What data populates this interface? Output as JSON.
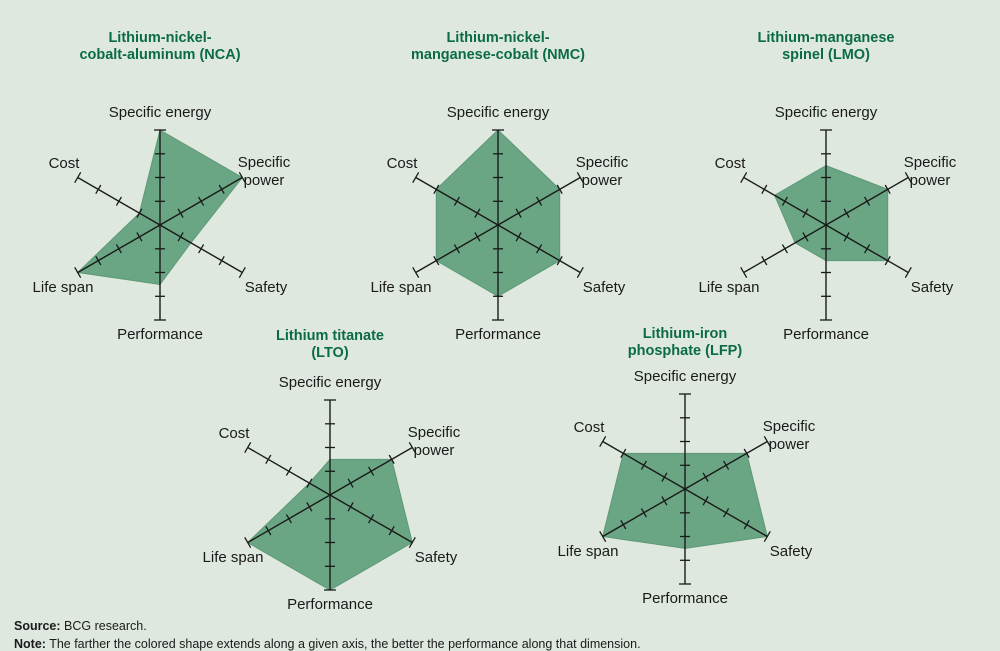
{
  "colors": {
    "fill": "#6aa684",
    "fill_stroke": "#5d9877",
    "axis": "#1a1a1a",
    "title": "#0b6b45",
    "background": "#dfe8df"
  },
  "chart_data": [
    {
      "type": "radar",
      "title": "Lithium-nickel-\ncobalt-aluminum (NCA)",
      "axes": [
        "Specific energy",
        "Specific power",
        "Safety",
        "Performance",
        "Life span",
        "Cost"
      ],
      "scale_max": 4,
      "values": [
        4,
        4,
        1.5,
        2.5,
        4,
        1
      ]
    },
    {
      "type": "radar",
      "title": "Lithium-nickel-\nmanganese-cobalt (NMC)",
      "axes": [
        "Specific energy",
        "Specific power",
        "Safety",
        "Performance",
        "Life span",
        "Cost"
      ],
      "scale_max": 4,
      "values": [
        4,
        3,
        3,
        3,
        3,
        3
      ]
    },
    {
      "type": "radar",
      "title": "Lithium-manganese\nspinel (LMO)",
      "axes": [
        "Specific energy",
        "Specific power",
        "Safety",
        "Performance",
        "Life span",
        "Cost"
      ],
      "scale_max": 4,
      "values": [
        2.5,
        3,
        3,
        1.5,
        1.5,
        2.5
      ]
    },
    {
      "type": "radar",
      "title": "Lithium titanate\n(LTO)",
      "axes": [
        "Specific energy",
        "Specific power",
        "Safety",
        "Performance",
        "Life span",
        "Cost"
      ],
      "scale_max": 4,
      "values": [
        1.5,
        3,
        4,
        4,
        4,
        1
      ]
    },
    {
      "type": "radar",
      "title": "Lithium-iron\nphosphate (LFP)",
      "axes": [
        "Specific energy",
        "Specific power",
        "Safety",
        "Performance",
        "Life span",
        "Cost"
      ],
      "scale_max": 4,
      "values": [
        1.5,
        3,
        4,
        2.5,
        4,
        3
      ]
    }
  ],
  "footer": {
    "source_label": "Source:",
    "source_text": " BCG research.",
    "note_label": "Note:",
    "note_text": " The farther the colored shape extends along a given axis, the better the performance along that dimension."
  }
}
